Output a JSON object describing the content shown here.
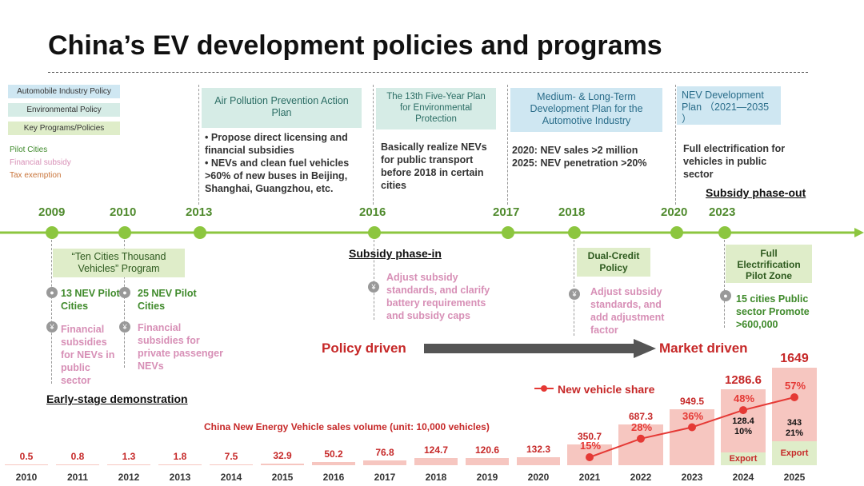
{
  "title": "China’s EV development policies and programs",
  "legend": {
    "auto": "Automobile Industry Policy",
    "env": "Environmental Policy",
    "key": "Key Programs/Policies",
    "pilot": "Pilot Cities",
    "subsidy": "Financial subsidy",
    "tax": "Tax exemption"
  },
  "years": [
    "2009",
    "2010",
    "2013",
    "2016",
    "2017",
    "2018",
    "2020",
    "2023"
  ],
  "upper": {
    "air_title": "Air Pollution Prevention Action Plan",
    "air_b1": "Propose direct licensing and financial subsidies",
    "air_b2": "NEVs and clean fuel vehicles >60% of new buses in Beijing, Shanghai, Guangzhou, etc.",
    "five_title": "The 13th Five-Year Plan for Environmental Protection",
    "five_text": "Basically realize NEVs for public transport before 2018 in certain cities",
    "mlt_title": "Medium- & Long-Term Development Plan for the Automotive Industry",
    "mlt_l1": "2020: NEV sales >2 million",
    "mlt_l2": "2025: NEV penetration >20%",
    "nev_title": "NEV Development Plan （2021—2035 ）",
    "nev_text": "Full electrification for vehicles in public sector",
    "phase_out": "Subsidy phase-out"
  },
  "lower": {
    "ten_title": "“Ten Cities Thousand Vehicles” Program",
    "c13": "13 NEV Pilot Cities",
    "c25": "25 NEV Pilot Cities",
    "fin1": "Financial subsidies for NEVs in public sector",
    "fin2": "Financial subsidies for private passenger NEVs",
    "early": "Early-stage demonstration",
    "phase_in": "Subsidy phase-in",
    "adj1": "Adjust subsidy standards, and clarify battery requirements and subsidy caps",
    "dual_title": "Dual-Credit Policy",
    "adj2": "Adjust subsidy standards, and add adjustment factor",
    "full_title": "Full Electrification Pilot Zone",
    "full_text": "15 cities Public sector Promote >600,000",
    "policy": "Policy driven",
    "market": "Market driven"
  },
  "chart_data": {
    "type": "bar",
    "title": "China New Energy Vehicle sales volume (unit: 10,000 vehicles)",
    "categories": [
      "2010",
      "2011",
      "2012",
      "2013",
      "2014",
      "2015",
      "2016",
      "2017",
      "2018",
      "2019",
      "2020",
      "2021",
      "2022",
      "2023",
      "2024",
      "2025"
    ],
    "values": [
      0.5,
      0.8,
      1.3,
      1.8,
      7.5,
      32.9,
      50.2,
      76.8,
      124.7,
      120.6,
      132.3,
      350.7,
      687.3,
      949.5,
      1286.6,
      1649
    ],
    "value_labels": [
      "0.5",
      "0.8",
      "1.3",
      "1.8",
      "7.5",
      "32.9",
      "50.2",
      "76.8",
      "124.7",
      "120.6",
      "132.3",
      "350.7",
      "687.3",
      "949.5",
      "1286.6",
      "1649"
    ],
    "line_series": {
      "name": "New vehicle share",
      "x": [
        "2021",
        "2022",
        "2023",
        "2024",
        "2025"
      ],
      "values": [
        15,
        28,
        36,
        48,
        57
      ],
      "labels": [
        "15%",
        "28%",
        "36%",
        "48%",
        "57%"
      ]
    },
    "export": [
      {
        "year": "2024",
        "value": "128.4",
        "share": "10%",
        "label": "Export"
      },
      {
        "year": "2025",
        "value": "343",
        "share": "21%",
        "label": "Export"
      }
    ],
    "ylim": [
      0,
      1700
    ]
  }
}
